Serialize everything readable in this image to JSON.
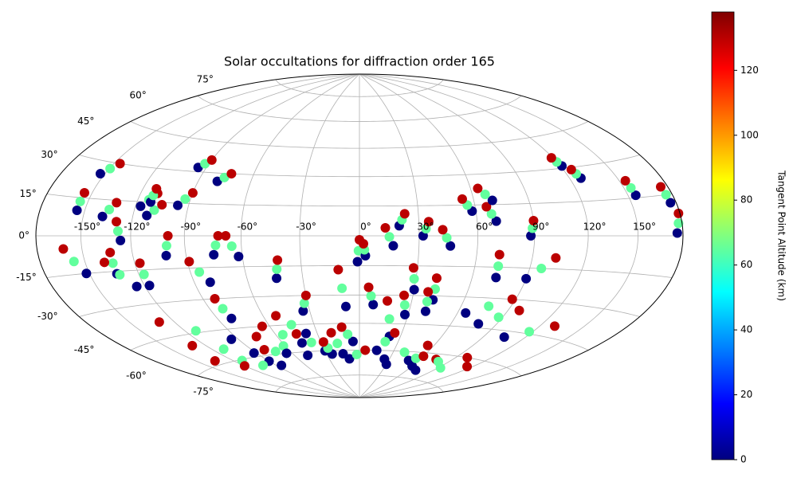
{
  "chart_data": {
    "type": "scatter",
    "projection": "hammer",
    "title": "Solar occultations for diffraction order 165",
    "xlim": [
      -180,
      180
    ],
    "ylim": [
      -90,
      90
    ],
    "grid": true,
    "xticks": [
      {
        "value": -150,
        "label": "-150°"
      },
      {
        "value": -120,
        "label": "-120°"
      },
      {
        "value": -90,
        "label": "-90°"
      },
      {
        "value": -60,
        "label": "-60°"
      },
      {
        "value": -30,
        "label": "-30°"
      },
      {
        "value": 0,
        "label": "0°"
      },
      {
        "value": 30,
        "label": "30°"
      },
      {
        "value": 60,
        "label": "60°"
      },
      {
        "value": 90,
        "label": "90°"
      },
      {
        "value": 120,
        "label": "120°"
      },
      {
        "value": 150,
        "label": "150°"
      }
    ],
    "yticks": [
      {
        "value": -75,
        "label": "-75°"
      },
      {
        "value": -60,
        "label": "-60°"
      },
      {
        "value": -45,
        "label": "-45°"
      },
      {
        "value": -30,
        "label": "-30°"
      },
      {
        "value": -15,
        "label": "-15°"
      },
      {
        "value": 0,
        "label": "0°"
      },
      {
        "value": 15,
        "label": "15°"
      },
      {
        "value": 30,
        "label": "30°"
      },
      {
        "value": 45,
        "label": "45°"
      },
      {
        "value": 60,
        "label": "60°"
      },
      {
        "value": 75,
        "label": "75°"
      }
    ],
    "colormap": "jet",
    "clim": [
      0,
      138
    ],
    "cticks": [
      0,
      20,
      40,
      60,
      80,
      100,
      120
    ],
    "colorbar_label": "Tangent Point Altitude (km)",
    "tracks": [
      {
        "x": [
          -155,
          -155,
          -155
        ],
        "y": [
          10,
          13.5,
          17
        ],
        "values": [
          0,
          65,
          130
        ]
      },
      {
        "x": [
          -153,
          -149.5,
          -146
        ],
        "y": [
          25,
          27.5,
          30
        ],
        "values": [
          0,
          65,
          130
        ]
      },
      {
        "x": [
          -138,
          -135,
          -132
        ],
        "y": [
          8,
          11,
          14
        ],
        "values": [
          0,
          65,
          130
        ]
      },
      {
        "x": [
          -126,
          -127.5,
          -129
        ],
        "y": [
          -2,
          2,
          6
        ],
        "values": [
          0,
          65,
          130
        ]
      },
      {
        "x": [
          -117,
          -113.5,
          -110
        ],
        "y": [
          13,
          16,
          19
        ],
        "values": [
          0,
          65,
          130
        ]
      },
      {
        "x": [
          -112,
          -108.5,
          -105
        ],
        "y": [
          9,
          11.5,
          14
        ],
        "values": [
          0,
          65,
          130
        ]
      },
      {
        "x": [
          -112,
          -112,
          -112
        ],
        "y": [
          15,
          18,
          21
        ],
        "values": [
          0,
          65,
          130
        ]
      },
      {
        "x": [
          -96,
          -93,
          -90
        ],
        "y": [
          14,
          17,
          20
        ],
        "values": [
          0,
          65,
          130
        ]
      },
      {
        "x": [
          -95,
          -92.5,
          -90
        ],
        "y": [
          32,
          34,
          36
        ],
        "values": [
          0,
          65,
          130
        ]
      },
      {
        "x": [
          -79,
          -76,
          -73
        ],
        "y": [
          26,
          28,
          30
        ],
        "values": [
          0,
          65,
          130
        ]
      },
      {
        "x": [
          -101,
          -100,
          -99
        ],
        "y": [
          -9,
          -4.5,
          0
        ],
        "values": [
          0,
          65,
          130
        ]
      },
      {
        "x": [
          -75,
          -73.5,
          -72
        ],
        "y": [
          -9,
          -4.5,
          0
        ],
        "values": [
          0,
          65,
          130
        ]
      },
      {
        "x": [
          -62,
          -65,
          -68
        ],
        "y": [
          -10,
          -5,
          0
        ],
        "values": [
          0,
          65,
          130
        ]
      },
      {
        "x": [
          -44,
          -43,
          -42
        ],
        "y": [
          -21,
          -16.5,
          -12
        ],
        "values": [
          0,
          65,
          130
        ]
      },
      {
        "x": [
          -1,
          -0.5,
          0
        ],
        "y": [
          -13,
          -7.5,
          -2
        ],
        "values": [
          0,
          65,
          130
        ]
      },
      {
        "x": [
          3,
          2.5,
          2
        ],
        "y": [
          -10,
          -7,
          -4
        ],
        "values": [
          0,
          65,
          130
        ]
      },
      {
        "x": [
          17,
          15,
          13
        ],
        "y": [
          -5,
          -0.5,
          4
        ],
        "values": [
          0,
          65,
          130
        ]
      },
      {
        "x": [
          20,
          21.5,
          23
        ],
        "y": [
          5,
          8,
          11
        ],
        "values": [
          0,
          65,
          130
        ]
      },
      {
        "x": [
          32,
          33.5,
          35
        ],
        "y": [
          0,
          3.5,
          7
        ],
        "values": [
          0,
          65,
          130
        ]
      },
      {
        "x": [
          46,
          44,
          42
        ],
        "y": [
          -5,
          -1,
          3
        ],
        "values": [
          0,
          65,
          130
        ]
      },
      {
        "x": [
          58,
          56,
          54
        ],
        "y": [
          12,
          15,
          18
        ],
        "values": [
          0,
          65,
          130
        ]
      },
      {
        "x": [
          70,
          68,
          66
        ],
        "y": [
          7,
          10.5,
          14
        ],
        "values": [
          0,
          65,
          130
        ]
      },
      {
        "x": [
          70,
          67,
          64
        ],
        "y": [
          17,
          20,
          23
        ],
        "values": [
          0,
          65,
          130
        ]
      },
      {
        "x": [
          88,
          89,
          90
        ],
        "y": [
          0,
          3.5,
          7
        ],
        "values": [
          0,
          65,
          130
        ]
      },
      {
        "x": [
          121,
          120,
          119
        ],
        "y": [
          31,
          33,
          35
        ],
        "values": [
          0,
          65,
          130
        ]
      },
      {
        "x": [
          127,
          126,
          125
        ],
        "y": [
          25,
          27,
          29
        ],
        "values": [
          0,
          65,
          130
        ]
      },
      {
        "x": [
          155,
          154.5,
          154
        ],
        "y": [
          16,
          19,
          22
        ],
        "values": [
          0,
          65,
          130
        ]
      },
      {
        "x": [
          176,
          175.5,
          175
        ],
        "y": [
          12,
          15,
          18
        ],
        "values": [
          0,
          65,
          130
        ]
      },
      {
        "x": [
          176,
          177.5,
          179
        ],
        "y": [
          1,
          4.5,
          8
        ],
        "values": [
          0,
          65,
          130
        ]
      },
      {
        "x": [
          -152,
          -157,
          -162
        ],
        "y": [
          -15,
          -10,
          -5
        ],
        "values": [
          0,
          65,
          130
        ]
      },
      {
        "x": [
          -133,
          -133,
          -133
        ],
        "y": [
          -16,
          -11.5,
          -7
        ],
        "values": [
          0,
          65,
          130
        ]
      },
      {
        "x": [
          -125,
          -131.5,
          -138
        ],
        "y": [
          -22,
          -16.5,
          -11
        ],
        "values": [
          0,
          65,
          130
        ]
      },
      {
        "x": [
          -117,
          -117,
          -117
        ],
        "y": [
          -22,
          -17,
          -12
        ],
        "values": [
          0,
          65,
          130
        ]
      },
      {
        "x": [
          -81,
          -85,
          -89
        ],
        "y": [
          -22,
          -17,
          -12
        ],
        "values": [
          0,
          65,
          130
        ]
      },
      {
        "x": [
          -81,
          -82,
          -83
        ],
        "y": [
          -40,
          -35,
          -30
        ],
        "values": [
          0,
          65,
          130
        ]
      },
      {
        "x": [
          -34,
          -32,
          -30
        ],
        "y": [
          -38,
          -34,
          -30
        ],
        "values": [
          0,
          65,
          130
        ]
      },
      {
        "x": [
          -8,
          -9.5,
          -11
        ],
        "y": [
          -36,
          -26.5,
          -17
        ],
        "values": [
          0,
          65,
          130
        ]
      },
      {
        "x": [
          8,
          6.5,
          5
        ],
        "y": [
          -35,
          -30.5,
          -26
        ],
        "values": [
          0,
          65,
          130
        ]
      },
      {
        "x": [
          30,
          29,
          28
        ],
        "y": [
          -27,
          -21.5,
          -16
        ],
        "values": [
          0,
          65,
          130
        ]
      },
      {
        "x": [
          42,
          41.5,
          41
        ],
        "y": [
          -32,
          -26.5,
          -21
        ],
        "values": [
          0,
          65,
          130
        ]
      },
      {
        "x": [
          73,
          72.5,
          72
        ],
        "y": [
          -20,
          -14.5,
          -9
        ],
        "values": [
          0,
          65,
          130
        ]
      },
      {
        "x": [
          90,
          96.5,
          103
        ],
        "y": [
          -20,
          -15,
          -10
        ],
        "values": [
          0,
          65,
          130
        ]
      },
      {
        "x": [
          65,
          76.5,
          88
        ],
        "y": [
          -38,
          -34,
          -30
        ],
        "values": [
          0,
          65,
          130
        ]
      },
      {
        "x": [
          78,
          87.5,
          97
        ],
        "y": [
          -43,
          -39,
          -35
        ],
        "values": [
          0,
          65,
          130
        ]
      },
      {
        "x": [
          105,
          117.5,
          130
        ],
        "y": [
          -48,
          -44,
          -40
        ],
        "values": [
          0,
          65,
          130
        ]
      },
      {
        "x": [
          22,
          19,
          16
        ],
        "y": [
          -52,
          -42.5,
          -33
        ],
        "values": [
          0,
          65,
          130
        ]
      },
      {
        "x": [
          28,
          26.5,
          25
        ],
        "y": [
          -40,
          -35,
          -30
        ],
        "values": [
          0,
          65,
          130
        ]
      },
      {
        "x": [
          40,
          39,
          38
        ],
        "y": [
          -38,
          -33,
          -28
        ],
        "values": [
          0,
          65,
          130
        ]
      },
      {
        "x": [
          -95,
          -112.5,
          -130
        ],
        "y": [
          -50,
          -44,
          -38
        ],
        "values": [
          0,
          65,
          130
        ]
      },
      {
        "x": [
          -92,
          -111,
          -130
        ],
        "y": [
          -58,
          -54,
          -50
        ],
        "values": [
          0,
          65,
          130
        ]
      },
      {
        "x": [
          -90,
          -112.5,
          -135
        ],
        "y": [
          -63,
          -60.5,
          -58
        ],
        "values": [
          0,
          65,
          130
        ]
      },
      {
        "x": [
          -85,
          -102.5,
          -120
        ],
        "y": [
          -66,
          -64.5,
          -63
        ],
        "values": [
          0,
          65,
          130
        ]
      },
      {
        "x": [
          -48,
          -61.5,
          -75
        ],
        "y": [
          -62,
          -56,
          -50
        ],
        "values": [
          0,
          65,
          130
        ]
      },
      {
        "x": [
          -45,
          -55,
          -65
        ],
        "y": [
          -55,
          -50,
          -45
        ],
        "values": [
          0,
          65,
          130
        ]
      },
      {
        "x": [
          -38,
          -45,
          -52
        ],
        "y": [
          -50,
          -45,
          -40
        ],
        "values": [
          0,
          65,
          130
        ]
      },
      {
        "x": [
          -30,
          -37.5,
          -45
        ],
        "y": [
          -60,
          -55,
          -50
        ],
        "values": [
          0,
          65,
          130
        ]
      },
      {
        "x": [
          -15,
          -17.5,
          -20
        ],
        "y": [
          -62,
          -56,
          -50
        ],
        "values": [
          0,
          65,
          130
        ]
      },
      {
        "x": [
          -10,
          -2.5,
          5
        ],
        "y": [
          -65,
          -62.5,
          -60
        ],
        "values": [
          0,
          65,
          130
        ]
      },
      {
        "x": [
          15,
          20,
          25
        ],
        "y": [
          -60,
          -55,
          -50
        ],
        "values": [
          0,
          65,
          130
        ]
      },
      {
        "x": [
          25,
          40,
          55
        ],
        "y": [
          -65,
          -60.5,
          -56
        ],
        "values": [
          0,
          65,
          130
        ]
      },
      {
        "x": [
          30,
          52.5,
          75
        ],
        "y": [
          -68,
          -65.5,
          -63
        ],
        "values": [
          0,
          65,
          130
        ]
      },
      {
        "x": [
          60,
          80,
          100
        ],
        "y": [
          -68,
          -64,
          -60
        ],
        "values": [
          0,
          65,
          130
        ]
      },
      {
        "x": [
          70,
          92.5,
          115
        ],
        "y": [
          -70,
          -67,
          -64
        ],
        "values": [
          0,
          65,
          130
        ]
      },
      {
        "x": [
          50,
          55,
          60
        ],
        "y": [
          -65,
          -63.5,
          -62
        ],
        "values": [
          0,
          65,
          130
        ]
      },
      {
        "x": [
          -5,
          -8.5,
          -12
        ],
        "y": [
          -55,
          -51,
          -47
        ],
        "values": [
          0,
          65,
          130
        ]
      },
      {
        "x": [
          -25,
          -26.5,
          -28
        ],
        "y": [
          -62,
          -58.5,
          -55
        ],
        "values": [
          0,
          65,
          130
        ]
      },
      {
        "x": [
          -65,
          -72.5,
          -80
        ],
        "y": [
          -60,
          -58.5,
          -57
        ],
        "values": [
          0,
          65,
          130
        ]
      }
    ]
  }
}
